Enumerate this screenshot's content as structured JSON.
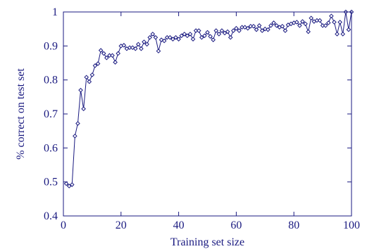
{
  "colors": {
    "ink": "#1a1a80"
  },
  "chart_data": {
    "type": "line",
    "title": "",
    "xlabel": "Training set size",
    "ylabel": "% correct on test set",
    "xlim": [
      0,
      100
    ],
    "ylim": [
      0.4,
      1.0
    ],
    "x_ticks": [
      0,
      20,
      40,
      60,
      80,
      100
    ],
    "x_tick_labels": [
      "0",
      "20",
      "40",
      "60",
      "80",
      "100"
    ],
    "y_ticks": [
      0.4,
      0.5,
      0.6,
      0.7,
      0.8,
      0.9,
      1.0
    ],
    "y_tick_labels": [
      "0.4",
      "0.5",
      "0.6",
      "0.7",
      "0.8",
      "0.9",
      "1"
    ],
    "grid": false,
    "legend": "none",
    "marker": "diamond-open",
    "series": [
      {
        "x": [
          1,
          2,
          3,
          4,
          5,
          6,
          7,
          8,
          9,
          10,
          11,
          12,
          13,
          14,
          15,
          16,
          17,
          18,
          19,
          20,
          21,
          22,
          23,
          24,
          25,
          26,
          27,
          28,
          29,
          30,
          31,
          32,
          33,
          34,
          35,
          36,
          37,
          38,
          39,
          40,
          41,
          42,
          43,
          44,
          45,
          46,
          47,
          48,
          49,
          50,
          51,
          52,
          53,
          54,
          55,
          56,
          57,
          58,
          59,
          60,
          61,
          62,
          63,
          64,
          65,
          66,
          67,
          68,
          69,
          70,
          71,
          72,
          73,
          74,
          75,
          76,
          77,
          78,
          79,
          80,
          81,
          82,
          83,
          84,
          85,
          86,
          87,
          88,
          89,
          90,
          91,
          92,
          93,
          94,
          95,
          96,
          97,
          98,
          99,
          100
        ],
        "values": [
          0.495,
          0.488,
          0.492,
          0.635,
          0.672,
          0.77,
          0.715,
          0.808,
          0.795,
          0.815,
          0.842,
          0.848,
          0.887,
          0.878,
          0.865,
          0.872,
          0.872,
          0.852,
          0.878,
          0.9,
          0.902,
          0.892,
          0.895,
          0.895,
          0.892,
          0.905,
          0.892,
          0.912,
          0.905,
          0.925,
          0.935,
          0.925,
          0.885,
          0.918,
          0.915,
          0.925,
          0.925,
          0.92,
          0.925,
          0.92,
          0.93,
          0.935,
          0.93,
          0.935,
          0.92,
          0.945,
          0.945,
          0.925,
          0.93,
          0.94,
          0.928,
          0.918,
          0.945,
          0.935,
          0.945,
          0.938,
          0.942,
          0.925,
          0.945,
          0.952,
          0.945,
          0.955,
          0.955,
          0.952,
          0.958,
          0.958,
          0.948,
          0.96,
          0.945,
          0.95,
          0.948,
          0.96,
          0.968,
          0.96,
          0.955,
          0.958,
          0.945,
          0.962,
          0.965,
          0.968,
          0.97,
          0.96,
          0.972,
          0.965,
          0.942,
          0.982,
          0.972,
          0.975,
          0.975,
          0.96,
          0.96,
          0.968,
          0.988,
          0.97,
          0.935,
          0.97,
          0.935,
          1.0,
          0.948,
          1.0
        ]
      }
    ]
  }
}
